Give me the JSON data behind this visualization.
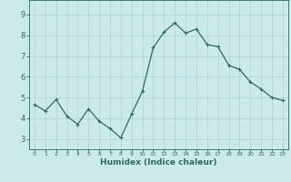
{
  "x": [
    0,
    1,
    2,
    3,
    4,
    5,
    6,
    7,
    8,
    9,
    10,
    11,
    12,
    13,
    14,
    15,
    16,
    17,
    18,
    19,
    20,
    21,
    22,
    23
  ],
  "y": [
    4.65,
    4.35,
    4.9,
    4.1,
    3.7,
    4.45,
    3.85,
    3.5,
    3.05,
    4.2,
    5.3,
    7.4,
    8.15,
    8.6,
    8.1,
    8.3,
    7.55,
    7.45,
    6.55,
    6.35,
    5.75,
    5.4,
    5.0,
    4.85
  ],
  "line_color": "#2e6b5e",
  "marker": "+",
  "marker_size": 3,
  "marker_linewidth": 0.8,
  "line_width": 0.9,
  "bg_color": "#cceaea",
  "grid_color": "#b0d8d8",
  "tick_color": "#2e6b5e",
  "xlabel": "Humidex (Indice chaleur)",
  "ylim": [
    2.5,
    9.7
  ],
  "xlim": [
    -0.5,
    23.5
  ],
  "yticks": [
    3,
    4,
    5,
    6,
    7,
    8,
    9
  ],
  "xticks": [
    0,
    1,
    2,
    3,
    4,
    5,
    6,
    7,
    8,
    9,
    10,
    11,
    12,
    13,
    14,
    15,
    16,
    17,
    18,
    19,
    20,
    21,
    22,
    23
  ],
  "xlabel_fontsize": 6.5,
  "ytick_fontsize": 6,
  "xtick_fontsize": 4.5
}
